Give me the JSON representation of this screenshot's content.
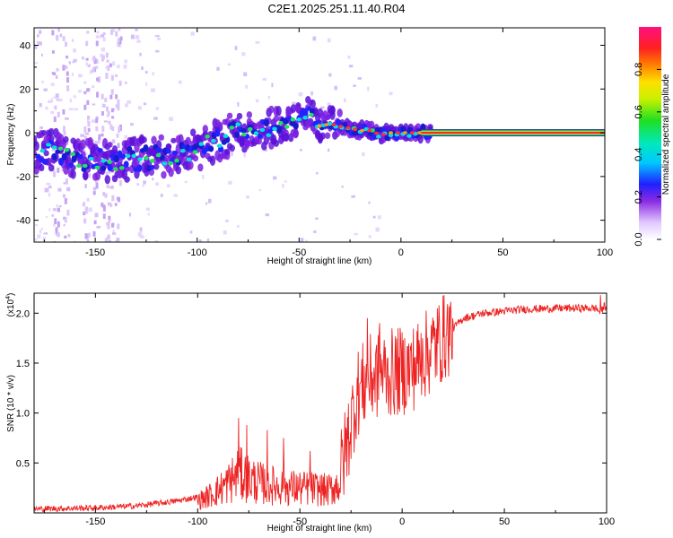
{
  "title": "C2E1.2025.251.11.40.R04",
  "chart_data": [
    {
      "type": "heatmap",
      "xlabel": "Height of straight line (km)",
      "ylabel": "Frequency (Hz)",
      "xlim": [
        -180,
        100
      ],
      "ylim": [
        -50,
        48
      ],
      "xticks": [
        -150,
        -100,
        -50,
        0,
        50,
        100
      ],
      "yticks": [
        -40,
        -20,
        0,
        20,
        40
      ],
      "ridge": {
        "x": [
          -180,
          -170,
          -160,
          -150,
          -140,
          -130,
          -120,
          -110,
          -100,
          -90,
          -80,
          -70,
          -60,
          -50,
          -45,
          -40,
          -35,
          -30,
          -25,
          -20,
          -15,
          -10,
          -5,
          0,
          5,
          10,
          15,
          20,
          40,
          60,
          80,
          100
        ],
        "y": [
          -10,
          -8,
          -12,
          -13,
          -13,
          -12,
          -11,
          -10,
          -8,
          -3,
          0,
          2,
          3,
          6,
          9,
          3,
          4,
          3,
          2,
          1,
          1,
          -1,
          0,
          0,
          0,
          0,
          0,
          0,
          0,
          0,
          0,
          0
        ]
      },
      "colorbar": {
        "label": "Normalized spectral amplitude",
        "range": [
          0.0,
          1.0
        ],
        "ticks": [
          0.0,
          0.2,
          0.4,
          0.6,
          0.8
        ]
      }
    },
    {
      "type": "line",
      "xlabel": "Height of straight line (km)",
      "ylabel": "SNR (10 * v/v)",
      "scale_label": "(x10",
      "scale_exp": "4",
      "xlim": [
        -180,
        100
      ],
      "ylim": [
        0,
        2.2
      ],
      "xticks": [
        -150,
        -100,
        -50,
        0,
        50,
        100
      ],
      "yticks": [
        0.5,
        1.0,
        1.5,
        2.0
      ],
      "series": [
        {
          "name": "SNR",
          "color": "#ee2222",
          "envelope_x": [
            -180,
            -150,
            -130,
            -110,
            -100,
            -95,
            -90,
            -85,
            -80,
            -70,
            -60,
            -50,
            -42,
            -36,
            -30,
            -25,
            -22,
            -18,
            -15,
            -10,
            -5,
            0,
            5,
            10,
            15,
            20,
            25,
            30,
            40,
            60,
            80,
            95,
            97,
            99,
            100
          ],
          "envelope_y": [
            0.04,
            0.05,
            0.07,
            0.12,
            0.16,
            0.22,
            0.3,
            0.4,
            0.52,
            0.4,
            0.35,
            0.33,
            0.32,
            0.3,
            0.4,
            0.9,
            1.2,
            1.3,
            1.35,
            1.4,
            1.4,
            1.42,
            1.45,
            1.55,
            1.65,
            1.75,
            1.85,
            1.95,
            2.0,
            2.04,
            2.05,
            2.05,
            2.0,
            2.08,
            2.05
          ],
          "spikes": [
            {
              "x": -80,
              "y": 0.95
            },
            {
              "x": -76,
              "y": 0.88
            },
            {
              "x": -66,
              "y": 0.83
            },
            {
              "x": -58,
              "y": 0.75
            },
            {
              "x": -45,
              "y": 0.62
            },
            {
              "x": -17,
              "y": 1.95
            },
            {
              "x": -11,
              "y": 1.9
            },
            {
              "x": -7,
              "y": 1.55
            },
            {
              "x": 10,
              "y": 1.75
            },
            {
              "x": 97,
              "y": 2.18
            }
          ]
        }
      ]
    }
  ]
}
